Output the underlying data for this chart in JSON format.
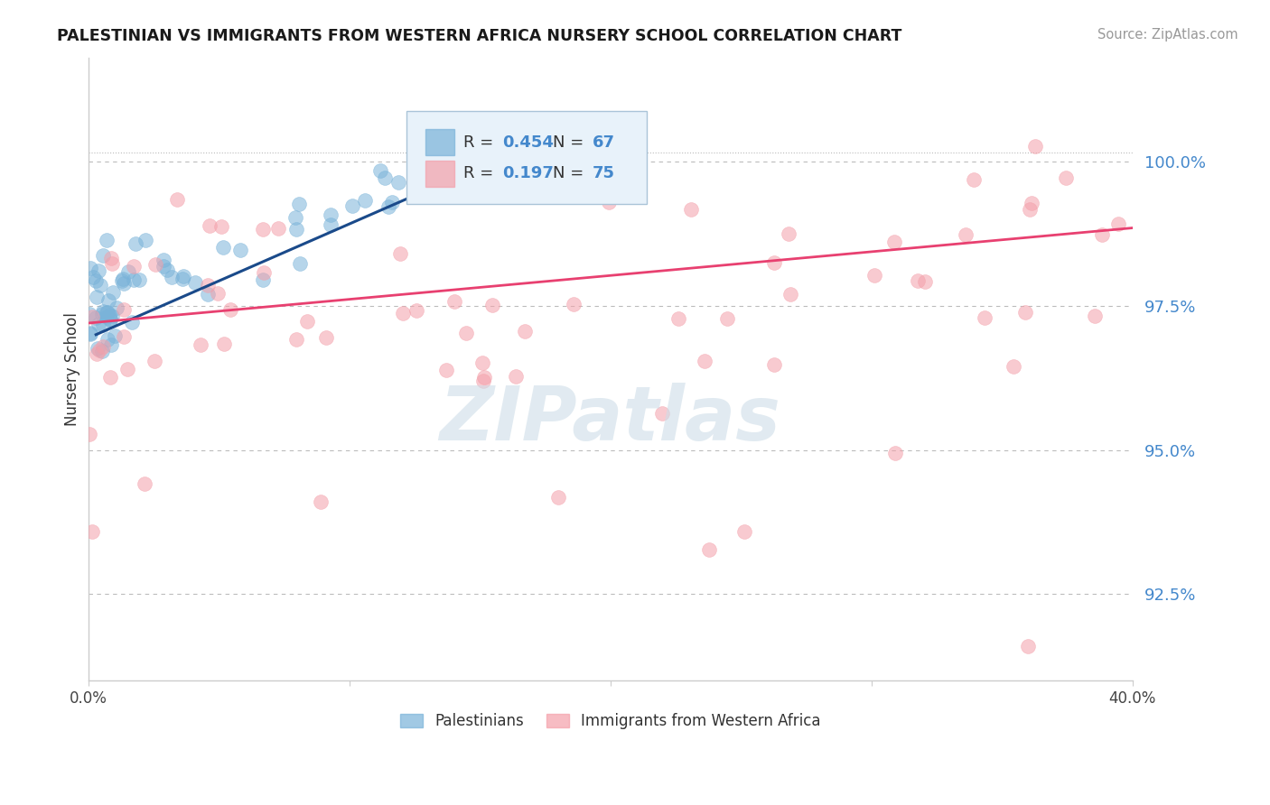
{
  "title": "PALESTINIAN VS IMMIGRANTS FROM WESTERN AFRICA NURSERY SCHOOL CORRELATION CHART",
  "source": "Source: ZipAtlas.com",
  "ylabel": "Nursery School",
  "xmin": 0.0,
  "xmax": 40.0,
  "ymin": 91.0,
  "ymax": 101.8,
  "yticks": [
    92.5,
    95.0,
    97.5,
    100.0
  ],
  "ytick_labels": [
    "92.5%",
    "95.0%",
    "97.5%",
    "100.0%"
  ],
  "blue_R": 0.454,
  "blue_N": 67,
  "pink_R": 0.197,
  "pink_N": 75,
  "blue_color": "#7ab3d9",
  "pink_color": "#f4a0aa",
  "blue_line_color": "#1a4a8a",
  "pink_line_color": "#e84070",
  "tick_color": "#4488cc",
  "watermark_color": "#cddde8",
  "background_color": "#ffffff",
  "grid_color": "#bbbbbb",
  "spine_color": "#cccccc",
  "blue_line_x": [
    0.3,
    18.0
  ],
  "blue_line_y": [
    97.0,
    100.5
  ],
  "pink_line_x": [
    0.0,
    40.0
  ],
  "pink_line_y": [
    97.2,
    98.85
  ]
}
